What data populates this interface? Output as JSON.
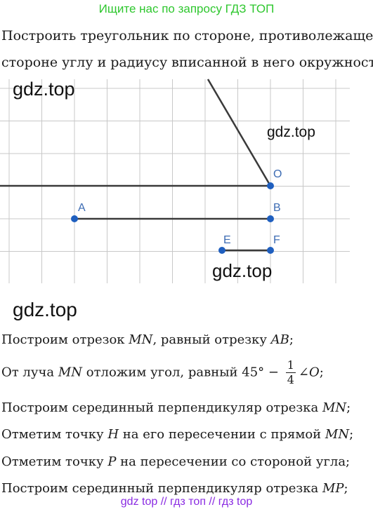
{
  "banner_top": "Ищите нас по запросу ГДЗ ТОП",
  "problem": {
    "line1": "Построить треугольник по стороне, противолежащему",
    "line2": "стороне углу и радиусу вписанной в него окружности:"
  },
  "watermarks": [
    "gdz.top",
    "gdz.top",
    "gdz.top",
    "gdz.top"
  ],
  "figure": {
    "labels": {
      "O": "O",
      "A": "A",
      "B": "B",
      "E": "E",
      "F": "F"
    },
    "colors": {
      "grid": "#c8c8c8",
      "line": "#3a3a3a",
      "point": "#1f5fbf",
      "label": "#3d6cb3"
    }
  },
  "solution": {
    "s1": {
      "a": "Построим отрезок ",
      "b": "MN",
      "c": ", равный отрезку ",
      "d": "AB",
      "e": ";"
    },
    "s2": {
      "a": "От луча ",
      "b": "MN",
      "c": " отложим угол, равный 45° − ",
      "num": "1",
      "den": "4",
      "d": "∠",
      "e": "O",
      "f": ";"
    },
    "s3": {
      "a": "Построим серединный перпендикуляр отрезка ",
      "b": "MN",
      "c": ";"
    },
    "s4": {
      "a": "Отметим точку ",
      "b": "H",
      "c": " на его пересечении с прямой ",
      "d": "MN",
      "e": ";"
    },
    "s5": {
      "a": "Отметим точку ",
      "b": "P",
      "c": " на пересечении со стороной угла;"
    },
    "s6": {
      "a": "Построим серединный перпендикуляр отрезка ",
      "b": "MP",
      "c": ";"
    }
  },
  "banner_bottom": "gdz top  //  гдз топ  //  гдз top"
}
